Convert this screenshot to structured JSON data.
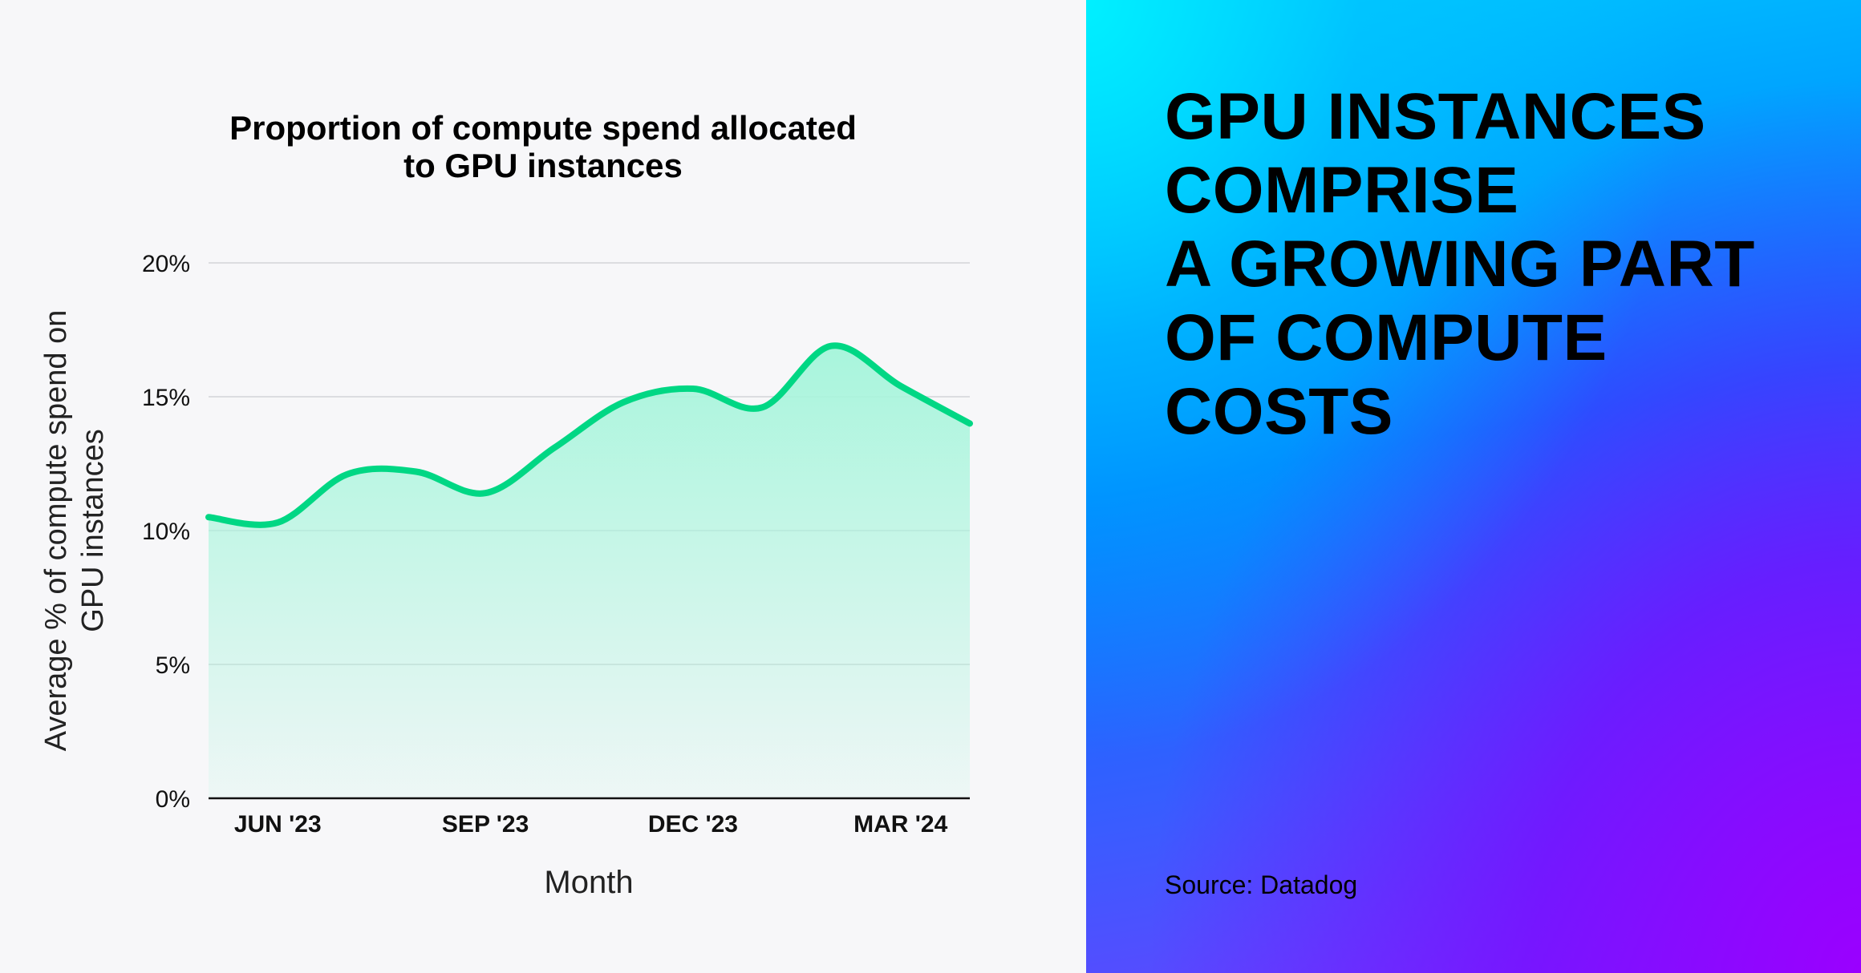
{
  "chart_data": {
    "type": "area",
    "title": "Proportion of compute spend allocated to GPU instances",
    "title_lines": [
      "Proportion of compute spend allocated",
      "to GPU instances"
    ],
    "xlabel": "Month",
    "ylabel_lines": [
      "Average % of compute spend on",
      "GPU instances"
    ],
    "x": [
      "May '23",
      "Jun '23",
      "Jul '23",
      "Aug '23",
      "Sep '23",
      "Oct '23",
      "Nov '23",
      "Dec '23",
      "Jan '24",
      "Feb '24",
      "Mar '24",
      "Apr '24"
    ],
    "values": [
      10.5,
      10.3,
      12.1,
      12.2,
      11.4,
      13.1,
      14.8,
      15.3,
      14.6,
      16.9,
      15.4,
      14.0
    ],
    "ylim": [
      0,
      20
    ],
    "yticks": [
      0,
      5,
      10,
      15,
      20
    ],
    "ytick_labels": [
      "0%",
      "5%",
      "10%",
      "15%",
      "20%"
    ],
    "xtick_labels": [
      {
        "label": "JUN '23",
        "index": 1
      },
      {
        "label": "SEP '23",
        "index": 4
      },
      {
        "label": "DEC '23",
        "index": 7
      },
      {
        "label": "MAR '24",
        "index": 10
      }
    ],
    "grid": true,
    "line_color": "#00d784",
    "fill_color": "#a8f5dc"
  },
  "headline": [
    "GPU INSTANCES",
    "COMPRISE",
    "A GROWING PART",
    "OF COMPUTE",
    "COSTS"
  ],
  "source": "Source: Datadog"
}
